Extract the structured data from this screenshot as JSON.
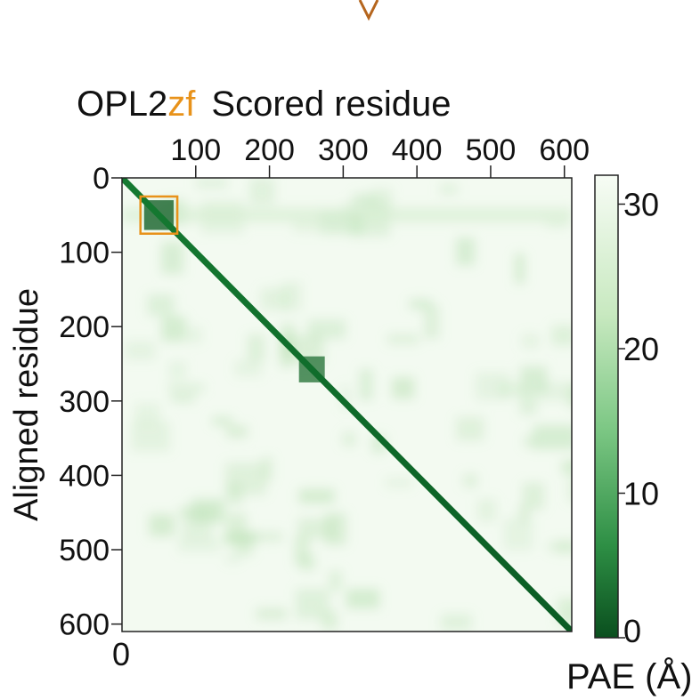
{
  "chart_data": {
    "type": "heatmap",
    "title_prefix": "OPL2",
    "title_highlight": "zf",
    "x_label": "Scored residue",
    "y_label": "Aligned residue",
    "origin_label": "0",
    "x_ticks": [
      100,
      200,
      300,
      400,
      500,
      600
    ],
    "y_ticks": [
      0,
      100,
      200,
      300,
      400,
      500,
      600
    ],
    "x_range": [
      0,
      610
    ],
    "y_range": [
      0,
      610
    ],
    "colorbar": {
      "label": "PAE (Å)",
      "ticks": [
        0,
        10,
        20,
        30
      ],
      "range": [
        0,
        32
      ],
      "low_color": "#0a5c24",
      "high_color": "#f7fcf5"
    },
    "highlight_box": {
      "residue_range": [
        25,
        75
      ],
      "color": "#e8921a"
    },
    "low_error_blocks": [
      {
        "from": 30,
        "to": 70,
        "pae": 4
      },
      {
        "from": 240,
        "to": 275,
        "pae": 9
      }
    ],
    "colors": {
      "accent": "#e8921a",
      "diagonal": "#0a5c24",
      "background": "#f7fcf5"
    }
  }
}
